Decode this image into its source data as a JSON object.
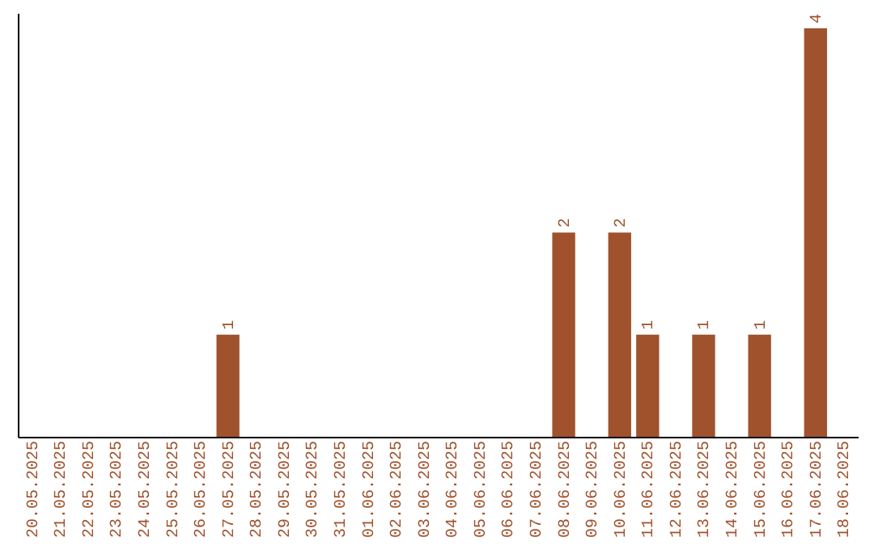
{
  "chart_data": {
    "type": "bar",
    "categories": [
      "20.05.2025",
      "21.05.2025",
      "22.05.2025",
      "23.05.2025",
      "24.05.2025",
      "25.05.2025",
      "26.05.2025",
      "27.05.2025",
      "28.05.2025",
      "29.05.2025",
      "30.05.2025",
      "31.05.2025",
      "01.06.2025",
      "02.06.2025",
      "03.06.2025",
      "04.06.2025",
      "05.06.2025",
      "06.06.2025",
      "07.06.2025",
      "08.06.2025",
      "09.06.2025",
      "10.06.2025",
      "11.06.2025",
      "12.06.2025",
      "13.06.2025",
      "14.06.2025",
      "15.06.2025",
      "16.06.2025",
      "17.06.2025",
      "18.06.2025"
    ],
    "values": [
      0,
      0,
      0,
      0,
      0,
      0,
      0,
      1,
      0,
      0,
      0,
      0,
      0,
      0,
      0,
      0,
      0,
      0,
      0,
      2,
      0,
      2,
      1,
      0,
      1,
      0,
      1,
      0,
      4,
      0
    ],
    "value_labels": [
      null,
      null,
      null,
      null,
      null,
      null,
      null,
      "1",
      null,
      null,
      null,
      null,
      null,
      null,
      null,
      null,
      null,
      null,
      null,
      "2",
      null,
      "2",
      "1",
      null,
      "1",
      null,
      "1",
      null,
      "4",
      null
    ],
    "color": "#a0522d",
    "ylim": [
      0,
      4.15
    ],
    "tick_labels": "x",
    "grid": false
  }
}
